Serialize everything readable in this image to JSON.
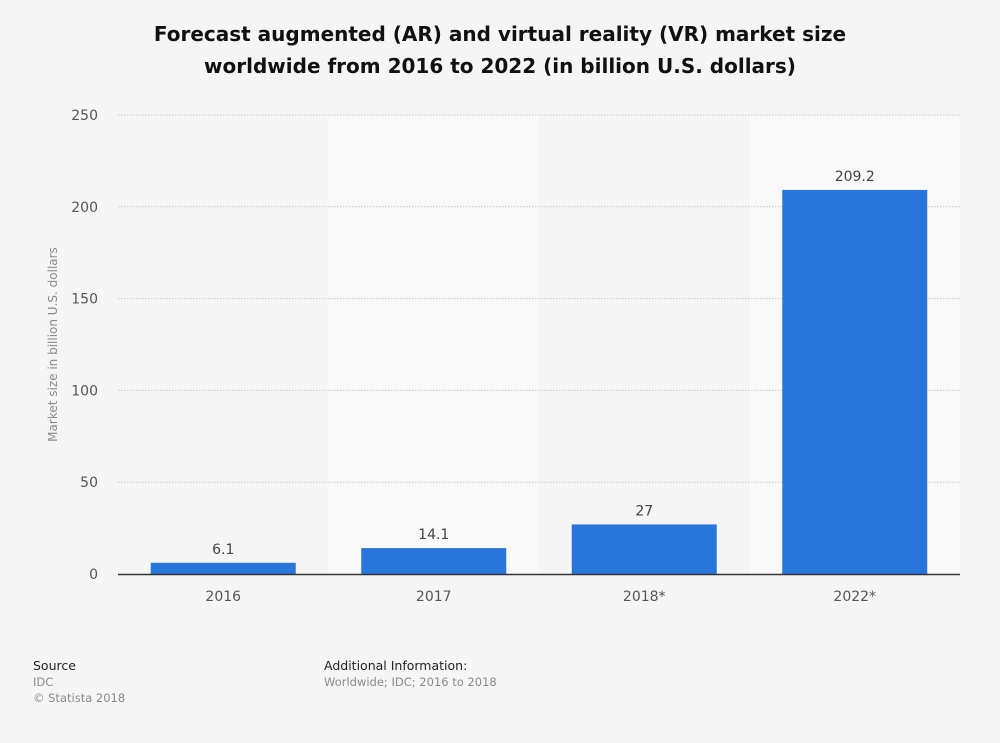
{
  "chart_data": {
    "type": "bar",
    "title": "Forecast augmented (AR) and virtual reality (VR) market size worldwide from 2016 to 2022 (in billion U.S. dollars)",
    "title_lines": [
      "Forecast augmented (AR) and virtual reality (VR) market size",
      "worldwide from 2016 to 2022 (in billion U.S. dollars)"
    ],
    "xlabel": "",
    "ylabel": "Market size in billion U.S. dollars",
    "categories": [
      "2016",
      "2017",
      "2018*",
      "2022*"
    ],
    "values": [
      6.1,
      14.1,
      27,
      209.2
    ],
    "data_labels": [
      "6.1",
      "14.1",
      "27",
      "209.2"
    ],
    "ylim": [
      0,
      250
    ],
    "yticks": [
      0,
      50,
      100,
      150,
      200,
      250
    ],
    "ytick_labels": [
      "0",
      "50",
      "100",
      "150",
      "200",
      "250"
    ],
    "grid": true,
    "bar_color": "#2875dc"
  },
  "footer": {
    "source_heading": "Source",
    "source_name": "IDC",
    "copyright": "© Statista 2018",
    "additional_heading": "Additional Information:",
    "additional_text": "Worldwide; IDC; 2016 to 2018"
  }
}
